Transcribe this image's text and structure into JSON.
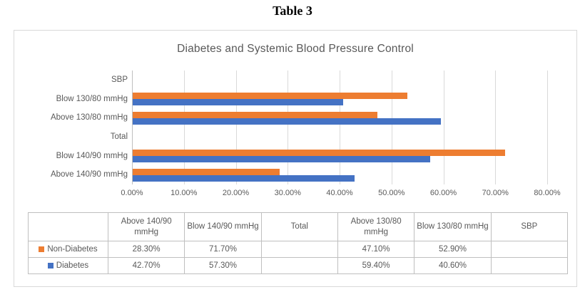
{
  "page": {
    "title": "Table 3"
  },
  "chart_data": {
    "type": "bar",
    "orientation": "horizontal",
    "title": "Diabetes and Systemic Blood Pressure Control",
    "categories": [
      "Above 140/90 mmHg",
      "Blow 140/90 mmHg",
      "Total",
      "Above 130/80 mmHg",
      "Blow 130/80 mmHg",
      "SBP"
    ],
    "series": [
      {
        "name": "Non-Diabetes",
        "color": "#ED7D31",
        "values": [
          28.3,
          71.7,
          null,
          47.1,
          52.9,
          null
        ]
      },
      {
        "name": "Diabetes",
        "color": "#4472C4",
        "values": [
          42.7,
          57.3,
          null,
          59.4,
          40.6,
          null
        ]
      }
    ],
    "xlabel": "",
    "ylabel": "",
    "xlim": [
      0,
      80
    ],
    "x_tick_labels": [
      "0.00%",
      "10.00%",
      "20.00%",
      "30.00%",
      "40.00%",
      "50.00%",
      "60.00%",
      "70.00%",
      "80.00%"
    ],
    "grid": true,
    "legend_position": "data-table-below"
  },
  "table": {
    "columns": [
      "",
      "Above 140/90 mmHg",
      "Blow 140/90 mmHg",
      "Total",
      "Above 130/80 mmHg",
      "Blow 130/80 mmHg",
      "SBP"
    ],
    "rows": [
      {
        "name": "Non-Diabetes",
        "marker_color": "#ED7D31",
        "values": [
          "28.30%",
          "71.70%",
          "",
          "47.10%",
          "52.90%",
          ""
        ]
      },
      {
        "name": "Diabetes",
        "marker_color": "#4472C4",
        "values": [
          "42.70%",
          "57.30%",
          "",
          "59.40%",
          "40.60%",
          ""
        ]
      }
    ]
  },
  "colors": {
    "grid": "#D9D9D9",
    "axis_text": "#595959",
    "table_border": "#BFBFBF",
    "frame_border": "#D9D9D9"
  }
}
